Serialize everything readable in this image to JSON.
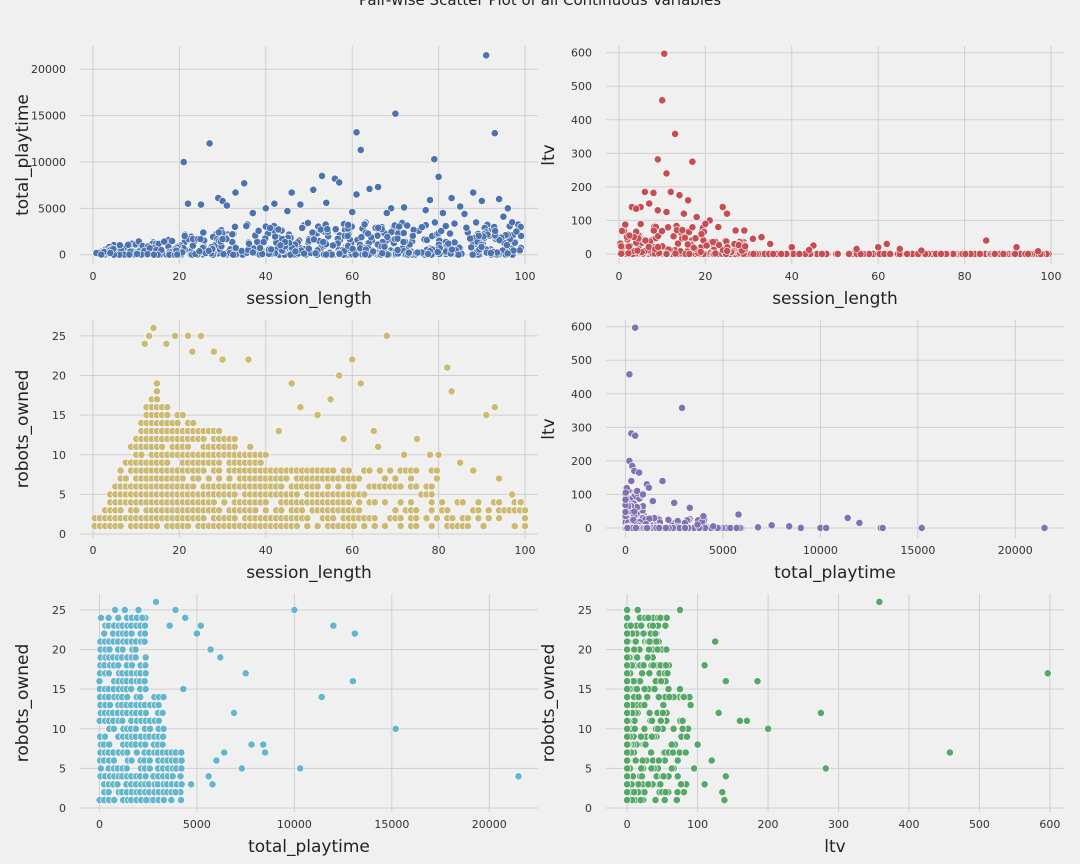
{
  "figure": {
    "title": "Pair-wise Scatter Plot of all Continuous Variables"
  },
  "chart_data": [
    {
      "type": "scatter",
      "xlabel": "session_length",
      "ylabel": "total_playtime",
      "xlim": [
        -3,
        103
      ],
      "ylim": [
        -1000,
        22500
      ],
      "xticks": [
        0,
        20,
        40,
        60,
        80,
        100
      ],
      "yticks": [
        0,
        5000,
        10000,
        15000,
        20000
      ],
      "grid": true,
      "color": "#4c72b0",
      "points": [
        [
          91,
          21500
        ],
        [
          70,
          15200
        ],
        [
          61,
          13200
        ],
        [
          93,
          13100
        ],
        [
          62,
          11300
        ],
        [
          27,
          12000
        ],
        [
          21,
          10000
        ],
        [
          79,
          10300
        ],
        [
          80,
          8400
        ],
        [
          53,
          8500
        ],
        [
          56,
          8200
        ],
        [
          57,
          7800
        ],
        [
          66,
          7300
        ],
        [
          64,
          7100
        ],
        [
          35,
          7700
        ],
        [
          51,
          7000
        ],
        [
          46,
          6700
        ],
        [
          61,
          6500
        ],
        [
          88,
          6700
        ],
        [
          33,
          6700
        ],
        [
          29,
          6100
        ],
        [
          83,
          6100
        ],
        [
          94,
          6000
        ],
        [
          78,
          5900
        ],
        [
          25,
          5400
        ],
        [
          22,
          5500
        ],
        [
          30,
          5800
        ],
        [
          42,
          5500
        ],
        [
          48,
          5400
        ],
        [
          54,
          5600
        ],
        [
          31,
          5300
        ],
        [
          40,
          5000
        ],
        [
          69,
          5000
        ],
        [
          72,
          5100
        ],
        [
          85,
          5200
        ],
        [
          90,
          5800
        ],
        [
          96,
          5000
        ],
        [
          60,
          4600
        ],
        [
          45,
          4700
        ],
        [
          37,
          4500
        ],
        [
          68,
          4500
        ],
        [
          77,
          4800
        ],
        [
          81,
          4500
        ],
        [
          86,
          4400
        ],
        [
          95,
          4100
        ],
        [
          97,
          3500
        ],
        [
          99,
          3000
        ],
        [
          98,
          2500
        ]
      ],
      "bulk_note_none": ""
    },
    {
      "type": "scatter",
      "xlabel": "session_length",
      "ylabel": "ltv",
      "xlim": [
        -3,
        103
      ],
      "ylim": [
        -30,
        620
      ],
      "xticks": [
        0,
        20,
        40,
        60,
        80,
        100
      ],
      "yticks": [
        0,
        100,
        200,
        300,
        400,
        500,
        600
      ],
      "grid": true,
      "color": "#c44e52",
      "points": [
        [
          10.5,
          597
        ],
        [
          10,
          458
        ],
        [
          13,
          358
        ],
        [
          9,
          282
        ],
        [
          17,
          275
        ],
        [
          11,
          240
        ],
        [
          6,
          185
        ],
        [
          8,
          182
        ],
        [
          12,
          185
        ],
        [
          14,
          175
        ],
        [
          16,
          160
        ],
        [
          7,
          150
        ],
        [
          5,
          140
        ],
        [
          3,
          140
        ],
        [
          4,
          135
        ],
        [
          9,
          130
        ],
        [
          11,
          125
        ],
        [
          15,
          120
        ],
        [
          18,
          110
        ],
        [
          21,
          100
        ],
        [
          24,
          140
        ],
        [
          25,
          120
        ],
        [
          20,
          90
        ],
        [
          23,
          80
        ],
        [
          27,
          70
        ],
        [
          29,
          70
        ],
        [
          31,
          45
        ],
        [
          33,
          50
        ],
        [
          35,
          30
        ],
        [
          40,
          20
        ],
        [
          45,
          25
        ],
        [
          55,
          15
        ],
        [
          60,
          20
        ],
        [
          62,
          30
        ],
        [
          65,
          15
        ],
        [
          70,
          10
        ],
        [
          85,
          40
        ],
        [
          92,
          20
        ],
        [
          97,
          8
        ],
        [
          44,
          12
        ]
      ]
    },
    {
      "type": "scatter",
      "xlabel": "session_length",
      "ylabel": "robots_owned",
      "xlim": [
        -3,
        103
      ],
      "ylim": [
        -0.5,
        27
      ],
      "xticks": [
        0,
        20,
        40,
        60,
        80,
        100
      ],
      "yticks": [
        0,
        5,
        10,
        15,
        20,
        25
      ],
      "grid": true,
      "color": "#ccb974",
      "points": [
        [
          14,
          26
        ],
        [
          13,
          25
        ],
        [
          19,
          25
        ],
        [
          22,
          25
        ],
        [
          25,
          25
        ],
        [
          68,
          25
        ],
        [
          12,
          24
        ],
        [
          17,
          24
        ],
        [
          23,
          23
        ],
        [
          28,
          23
        ],
        [
          30,
          22
        ],
        [
          36,
          22
        ],
        [
          60,
          22
        ],
        [
          82,
          21
        ],
        [
          57,
          20
        ],
        [
          46,
          19
        ],
        [
          62,
          19
        ],
        [
          83,
          18
        ],
        [
          55,
          17
        ],
        [
          91,
          15
        ],
        [
          93,
          16
        ],
        [
          48,
          16
        ],
        [
          52,
          15
        ],
        [
          43,
          13
        ],
        [
          65,
          13
        ],
        [
          58,
          12
        ],
        [
          75,
          12
        ],
        [
          66,
          11
        ],
        [
          72,
          10
        ],
        [
          78,
          10
        ],
        [
          80,
          10
        ],
        [
          85,
          9
        ],
        [
          88,
          8
        ],
        [
          94,
          7
        ],
        [
          97,
          5
        ],
        [
          99,
          4
        ]
      ]
    },
    {
      "type": "scatter",
      "xlabel": "total_playtime",
      "ylabel": "ltv",
      "xlim": [
        -1000,
        22500
      ],
      "ylim": [
        -30,
        620
      ],
      "xticks": [
        0,
        5000,
        10000,
        15000,
        20000
      ],
      "yticks": [
        0,
        100,
        200,
        300,
        400,
        500,
        600
      ],
      "grid": true,
      "color": "#8172b2",
      "points": [
        [
          500,
          597
        ],
        [
          200,
          458
        ],
        [
          2900,
          358
        ],
        [
          300,
          282
        ],
        [
          500,
          275
        ],
        [
          200,
          200
        ],
        [
          350,
          185
        ],
        [
          450,
          170
        ],
        [
          700,
          165
        ],
        [
          1100,
          130
        ],
        [
          1900,
          140
        ],
        [
          1200,
          120
        ],
        [
          300,
          140
        ],
        [
          600,
          110
        ],
        [
          900,
          100
        ],
        [
          1400,
          80
        ],
        [
          2500,
          75
        ],
        [
          3300,
          60
        ],
        [
          4000,
          35
        ],
        [
          5800,
          40
        ],
        [
          7500,
          8
        ],
        [
          8400,
          5
        ],
        [
          10000,
          0
        ],
        [
          10300,
          0
        ],
        [
          11400,
          30
        ],
        [
          12000,
          15
        ],
        [
          13100,
          0
        ],
        [
          13200,
          0
        ],
        [
          15200,
          0
        ],
        [
          21500,
          0
        ],
        [
          6800,
          2
        ],
        [
          9000,
          0
        ],
        [
          4500,
          5
        ],
        [
          3700,
          10
        ]
      ]
    },
    {
      "type": "scatter",
      "xlabel": "total_playtime",
      "ylabel": "robots_owned",
      "xlim": [
        -1000,
        22500
      ],
      "ylim": [
        -0.5,
        27
      ],
      "xticks": [
        0,
        5000,
        10000,
        15000,
        20000
      ],
      "yticks": [
        0,
        5,
        10,
        15,
        20,
        25
      ],
      "grid": true,
      "color": "#64b5cd",
      "points": [
        [
          2900,
          26
        ],
        [
          800,
          25
        ],
        [
          1300,
          25
        ],
        [
          2000,
          25
        ],
        [
          3900,
          25
        ],
        [
          10000,
          25
        ],
        [
          2200,
          24
        ],
        [
          4400,
          24
        ],
        [
          3600,
          23
        ],
        [
          5200,
          23
        ],
        [
          12000,
          23
        ],
        [
          13100,
          22
        ],
        [
          5000,
          22
        ],
        [
          6200,
          19
        ],
        [
          5700,
          20
        ],
        [
          7500,
          17
        ],
        [
          13000,
          16
        ],
        [
          11400,
          14
        ],
        [
          4300,
          15
        ],
        [
          6900,
          12
        ],
        [
          7800,
          8
        ],
        [
          8400,
          8
        ],
        [
          15200,
          10
        ],
        [
          6400,
          7
        ],
        [
          7300,
          5
        ],
        [
          10300,
          5
        ],
        [
          21500,
          4
        ],
        [
          5800,
          3
        ],
        [
          8500,
          7
        ],
        [
          5600,
          4
        ],
        [
          6000,
          6
        ],
        [
          4700,
          3
        ],
        [
          3900,
          2
        ],
        [
          3300,
          1
        ],
        [
          2400,
          1
        ]
      ]
    },
    {
      "type": "scatter",
      "xlabel": "ltv",
      "ylabel": "robots_owned",
      "xlim": [
        -30,
        620
      ],
      "ylim": [
        -0.5,
        27
      ],
      "xticks": [
        0,
        100,
        200,
        300,
        400,
        500,
        600
      ],
      "yticks": [
        0,
        5,
        10,
        15,
        20,
        25
      ],
      "grid": true,
      "color": "#55a868",
      "points": [
        [
          358,
          26
        ],
        [
          0,
          25
        ],
        [
          15,
          25
        ],
        [
          75,
          25
        ],
        [
          30,
          24
        ],
        [
          5,
          23
        ],
        [
          20,
          23
        ],
        [
          40,
          22
        ],
        [
          125,
          21
        ],
        [
          0,
          20
        ],
        [
          10,
          20
        ],
        [
          55,
          18
        ],
        [
          110,
          18
        ],
        [
          140,
          16
        ],
        [
          185,
          16
        ],
        [
          597,
          17
        ],
        [
          75,
          15
        ],
        [
          60,
          14
        ],
        [
          90,
          13
        ],
        [
          130,
          12
        ],
        [
          275,
          12
        ],
        [
          160,
          11
        ],
        [
          170,
          11
        ],
        [
          200,
          10
        ],
        [
          458,
          7
        ],
        [
          282,
          5
        ],
        [
          100,
          8
        ],
        [
          120,
          6
        ],
        [
          140,
          4
        ],
        [
          110,
          3
        ],
        [
          135,
          2
        ],
        [
          138,
          1
        ],
        [
          95,
          5
        ],
        [
          85,
          9
        ],
        [
          65,
          7
        ],
        [
          45,
          6
        ],
        [
          20,
          5
        ],
        [
          30,
          3
        ],
        [
          10,
          2
        ],
        [
          0,
          1
        ]
      ]
    }
  ]
}
